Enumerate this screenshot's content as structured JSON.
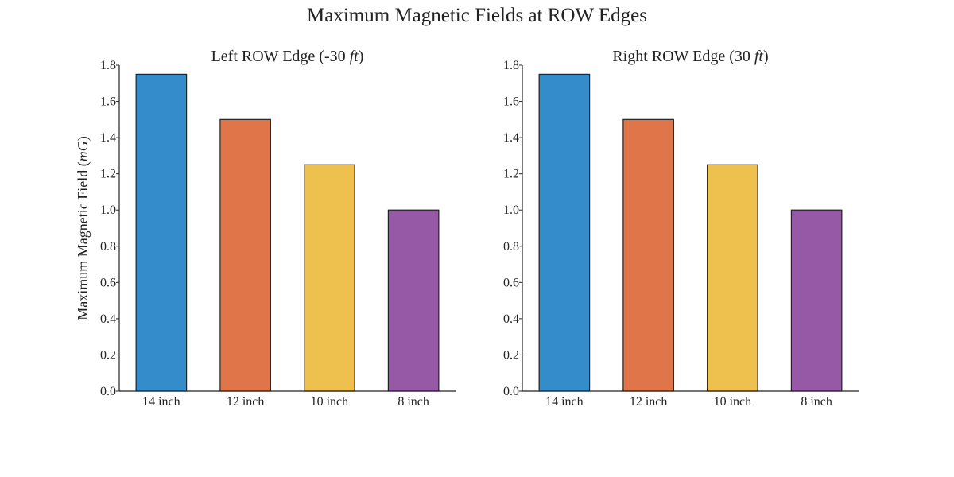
{
  "figure": {
    "title": "Maximum Magnetic Fields at ROW Edges"
  },
  "chart_data": [
    {
      "type": "bar",
      "title": "Left ROW Edge (-30 ",
      "title_unit": "ft",
      "title_suffix": ")",
      "xlabel": "",
      "ylabel": "Maximum Magnetic Field (",
      "ylabel_unit": "mG",
      "ylabel_suffix": ")",
      "categories": [
        "14 inch",
        "12 inch",
        "10 inch",
        "8 inch"
      ],
      "values": [
        1.75,
        1.5,
        1.25,
        1.0
      ],
      "colors": [
        "#348ccb",
        "#e07549",
        "#eec04d",
        "#9659a5"
      ],
      "ylim": [
        0,
        1.8
      ],
      "yticks": [
        "0.0",
        "0.2",
        "0.4",
        "0.6",
        "0.8",
        "1.0",
        "1.2",
        "1.4",
        "1.6",
        "1.8"
      ],
      "grid": false
    },
    {
      "type": "bar",
      "title": "Right ROW Edge (30 ",
      "title_unit": "ft",
      "title_suffix": ")",
      "xlabel": "",
      "ylabel": "",
      "categories": [
        "14 inch",
        "12 inch",
        "10 inch",
        "8 inch"
      ],
      "values": [
        1.75,
        1.5,
        1.25,
        1.0
      ],
      "colors": [
        "#348ccb",
        "#e07549",
        "#eec04d",
        "#9659a5"
      ],
      "ylim": [
        0,
        1.8
      ],
      "yticks": [
        "0.0",
        "0.2",
        "0.4",
        "0.6",
        "0.8",
        "1.0",
        "1.2",
        "1.4",
        "1.6",
        "1.8"
      ],
      "grid": false
    }
  ]
}
